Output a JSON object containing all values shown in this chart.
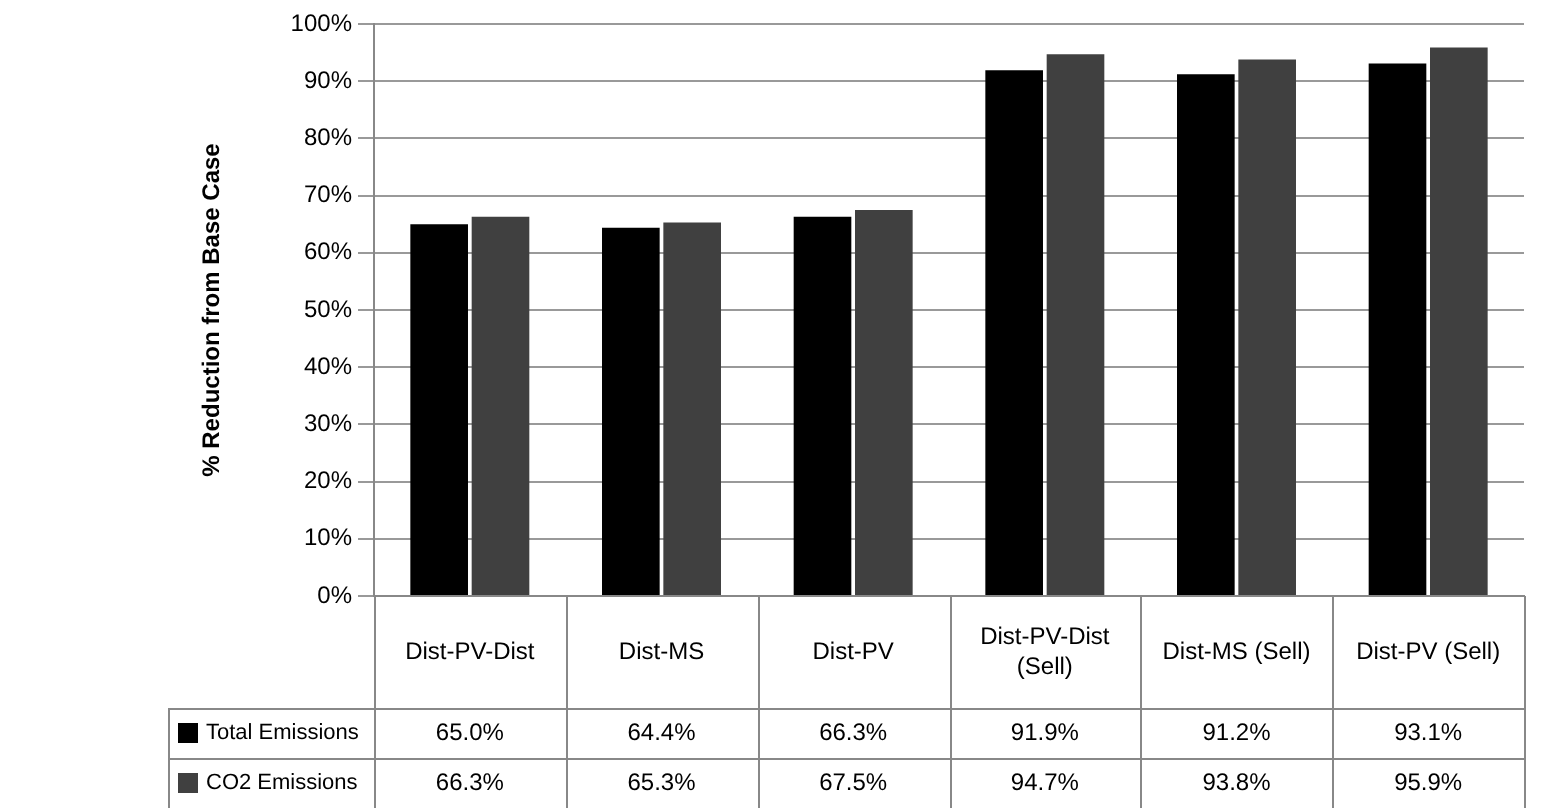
{
  "chart_data": {
    "type": "bar",
    "ylabel": "% Reduction from Base Case",
    "categories": [
      "Dist-PV-Dist",
      "Dist-MS",
      "Dist-PV",
      "Dist-PV-Dist (Sell)",
      "Dist-MS (Sell)",
      "Dist-PV (Sell)"
    ],
    "series": [
      {
        "name": "Total Emissions",
        "color": "#000000",
        "values": [
          65.0,
          64.4,
          66.3,
          91.9,
          91.2,
          93.1
        ],
        "value_labels": [
          "65.0%",
          "64.4%",
          "66.3%",
          "91.9%",
          "91.2%",
          "93.1%"
        ]
      },
      {
        "name": "CO2 Emissions",
        "color": "#404040",
        "values": [
          66.3,
          65.3,
          67.5,
          94.7,
          93.8,
          95.9
        ],
        "value_labels": [
          "66.3%",
          "65.3%",
          "67.5%",
          "94.7%",
          "93.8%",
          "95.9%"
        ]
      }
    ],
    "ylim": [
      0,
      100
    ],
    "yticks": [
      {
        "value": 0,
        "label": "0%"
      },
      {
        "value": 10,
        "label": "10%"
      },
      {
        "value": 20,
        "label": "20%"
      },
      {
        "value": 30,
        "label": "30%"
      },
      {
        "value": 40,
        "label": "40%"
      },
      {
        "value": 50,
        "label": "50%"
      },
      {
        "value": 60,
        "label": "60%"
      },
      {
        "value": 70,
        "label": "70%"
      },
      {
        "value": 80,
        "label": "80%"
      },
      {
        "value": 90,
        "label": "90%"
      },
      {
        "value": 100,
        "label": "100%"
      }
    ],
    "grid": "y",
    "legend": "bottom"
  }
}
